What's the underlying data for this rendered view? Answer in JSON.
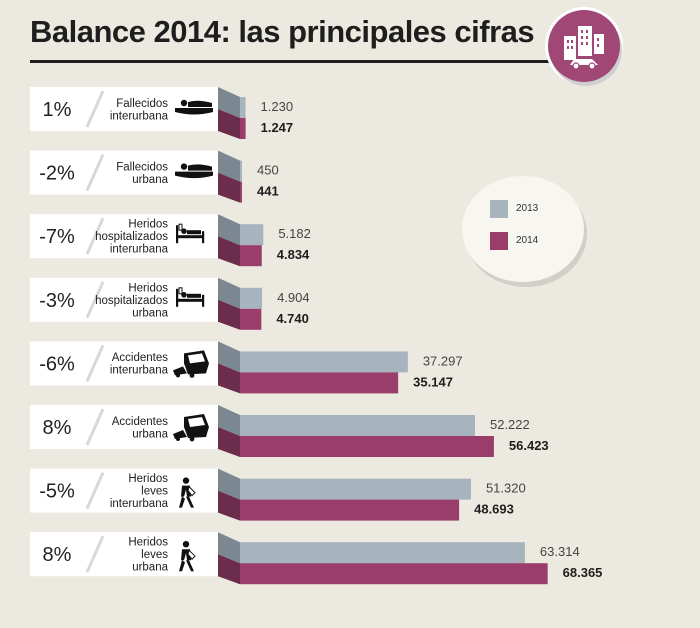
{
  "title": "Balance 2014: las principales cifras",
  "icons": {
    "badge": "city-car-icon"
  },
  "legend": {
    "items": [
      {
        "label": "2013",
        "color": "#a7b4be"
      },
      {
        "label": "2014",
        "color": "#9a3d6a"
      }
    ]
  },
  "chart_data": {
    "type": "bar",
    "orientation": "horizontal",
    "title": "Balance 2014: las principales cifras",
    "categories": [
      [
        "Fallecidos",
        "interurbana"
      ],
      [
        "Fallecidos",
        "urbana"
      ],
      [
        "Heridos",
        "hospitalizados",
        "interurbana"
      ],
      [
        "Heridos",
        "hospitalizados",
        "urbana"
      ],
      [
        "Accidentes",
        "interurbana"
      ],
      [
        "Accidentes",
        "urbana"
      ],
      [
        "Heridos",
        "leves",
        "interurbana"
      ],
      [
        "Heridos",
        "leves",
        "urbana"
      ]
    ],
    "icons": [
      "lying-person-icon",
      "lying-person-icon",
      "hospital-bed-icon",
      "hospital-bed-icon",
      "crashed-car-icon",
      "crashed-car-icon",
      "injured-walker-icon",
      "injured-walker-icon"
    ],
    "change_labels": [
      "1%",
      "-2%",
      "-7%",
      "-3%",
      "-6%",
      "8%",
      "-5%",
      "8%"
    ],
    "series": [
      {
        "name": "2013",
        "color": "#a7b4be",
        "values": [
          1230,
          450,
          5182,
          4904,
          37297,
          52222,
          51320,
          63314
        ],
        "labels": [
          "1.230",
          "450",
          "5.182",
          "4.904",
          "37.297",
          "52.222",
          "51.320",
          "63.314"
        ]
      },
      {
        "name": "2014",
        "color": "#9a3d6a",
        "values": [
          1247,
          441,
          4834,
          4740,
          35147,
          56423,
          48693,
          68365
        ],
        "labels": [
          "1.247",
          "441",
          "4.834",
          "4.740",
          "35.147",
          "56.423",
          "48.693",
          "68.365"
        ]
      }
    ],
    "xlim": [
      0,
      70000
    ],
    "grid": false,
    "legend_position": "right"
  }
}
